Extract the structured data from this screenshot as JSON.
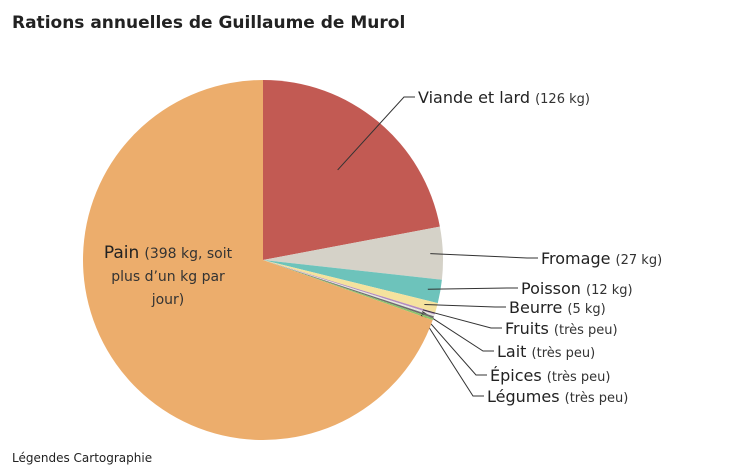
{
  "chart_data": {
    "type": "pie",
    "title": "Rations annuelles de Guillaume de Murol",
    "categories": [
      "Viande et lard",
      "Fromage",
      "Poisson",
      "Beurre",
      "Fruits",
      "Lait",
      "Épices",
      "Légumes",
      "Pain"
    ],
    "values": [
      126,
      27,
      12,
      5,
      1,
      1,
      1,
      1,
      398
    ],
    "value_labels": [
      "(126 kg)",
      "(27 kg)",
      "(12 kg)",
      "(5 kg)",
      "(très peu)",
      "(très peu)",
      "(très peu)",
      "(très peu)",
      "(398 kg, soit plus d’un kg par jour)"
    ],
    "colors": [
      "#c25a53",
      "#d5d2c8",
      "#6dc3bb",
      "#f5e29e",
      "#b38bbf",
      "#e6e6e0",
      "#6d6d6d",
      "#8cc46c",
      "#ecad6c"
    ],
    "source": "Légendes Cartographie"
  }
}
